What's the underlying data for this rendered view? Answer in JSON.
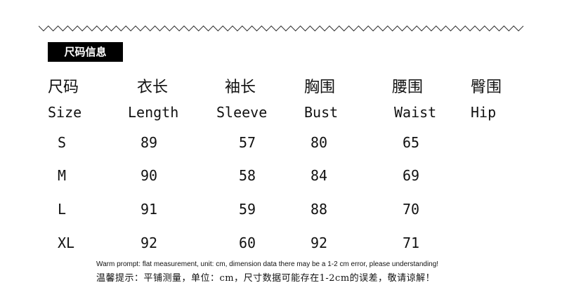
{
  "title": "尺码信息",
  "columns": [
    {
      "zh": "尺码",
      "en": "Size"
    },
    {
      "zh": "衣长",
      "en": "Length"
    },
    {
      "zh": "袖长",
      "en": "Sleeve"
    },
    {
      "zh": "胸围",
      "en": "Bust"
    },
    {
      "zh": "腰围",
      "en": "Waist"
    },
    {
      "zh": "臀围",
      "en": "Hip"
    }
  ],
  "rows": [
    [
      "S",
      "89",
      "57",
      "80",
      "65",
      ""
    ],
    [
      "M",
      "90",
      "58",
      "84",
      "69",
      ""
    ],
    [
      "L",
      "91",
      "59",
      "88",
      "70",
      ""
    ],
    [
      "XL",
      "92",
      "60",
      "92",
      "71",
      ""
    ]
  ],
  "note_en": "Warm prompt: flat measurement, unit: cm, dimension data there may be a 1-2 cm error, please understanding!",
  "note_zh": "温馨提示：平铺测量，单位：cm，尺寸数据可能存在1-2cm的误差，敬请谅解！"
}
